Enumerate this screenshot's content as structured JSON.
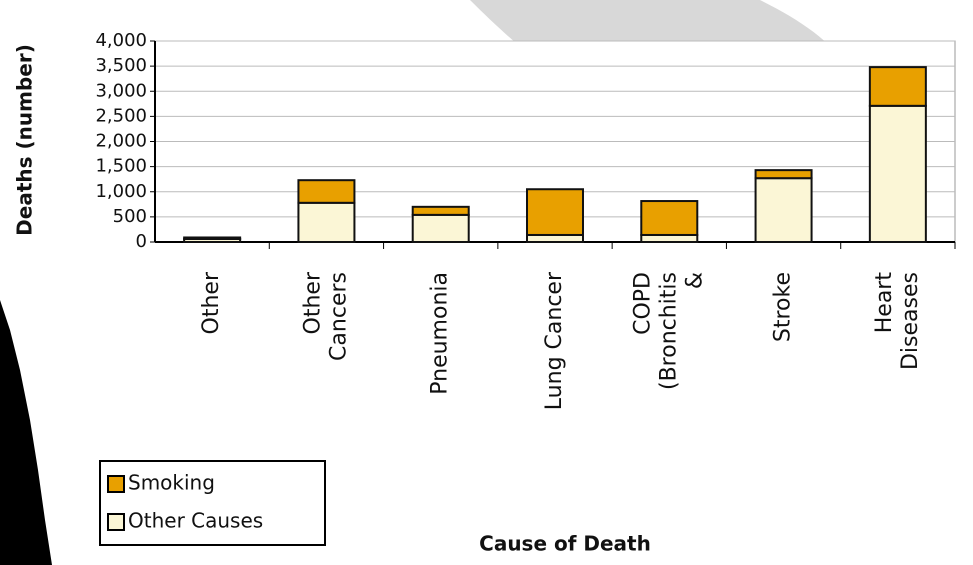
{
  "chart_data": {
    "type": "stacked_bar",
    "x_label": "Cause of Death",
    "y_label": "Deaths (number)",
    "categories": [
      "Other",
      "Other Cancers",
      "Pneumonia",
      "Lung Cancer",
      "COPD (Bronchitis &",
      "Stroke",
      "Heart Diseases"
    ],
    "series": [
      {
        "name": "Other Causes",
        "color": "#fbf6d6",
        "values": [
          60,
          780,
          540,
          140,
          140,
          1270,
          2710
        ]
      },
      {
        "name": "Smoking",
        "color": "#e8a000",
        "values": [
          30,
          450,
          160,
          910,
          675,
          160,
          770
        ]
      }
    ],
    "ylim": [
      0,
      4000
    ],
    "yticks": [
      0,
      500,
      {
        "value": 1000,
        "label": "1,000"
      },
      {
        "value": 1500,
        "label": "1,500"
      },
      {
        "value": 2000,
        "label": "2,000"
      },
      {
        "value": 2500,
        "label": "2,500"
      },
      {
        "value": 3000,
        "label": "3,000"
      },
      {
        "value": 3500,
        "label": "3,500"
      },
      {
        "value": 4000,
        "label": "4,000"
      }
    ],
    "grid": true
  }
}
